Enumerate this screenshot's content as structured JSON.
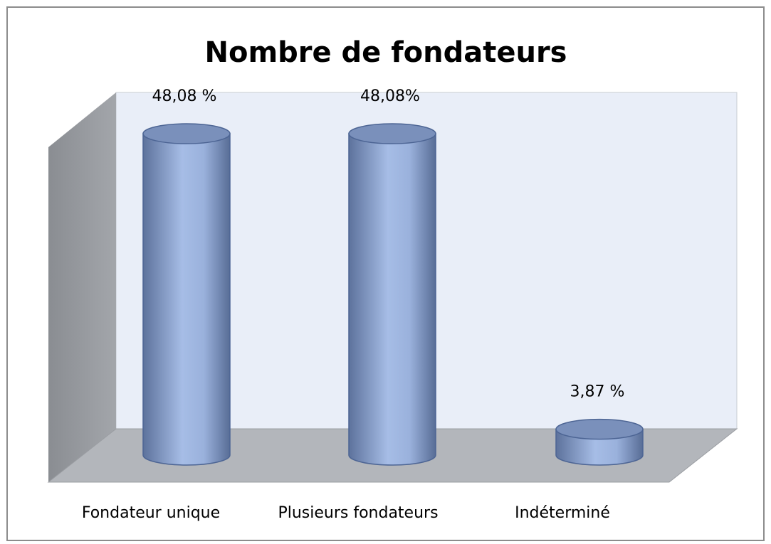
{
  "chart_data": {
    "type": "bar3d",
    "title": "Nombre de fondateurs",
    "categories": [
      "Fondateur unique",
      "Plusieurs fondateurs",
      "Indéterminé"
    ],
    "values": [
      48.08,
      48.08,
      3.87
    ],
    "value_labels": [
      "48,08 %",
      "48,08%",
      "3,87 %"
    ],
    "color": "#8fa6d2",
    "ylim": [
      0,
      50
    ]
  }
}
